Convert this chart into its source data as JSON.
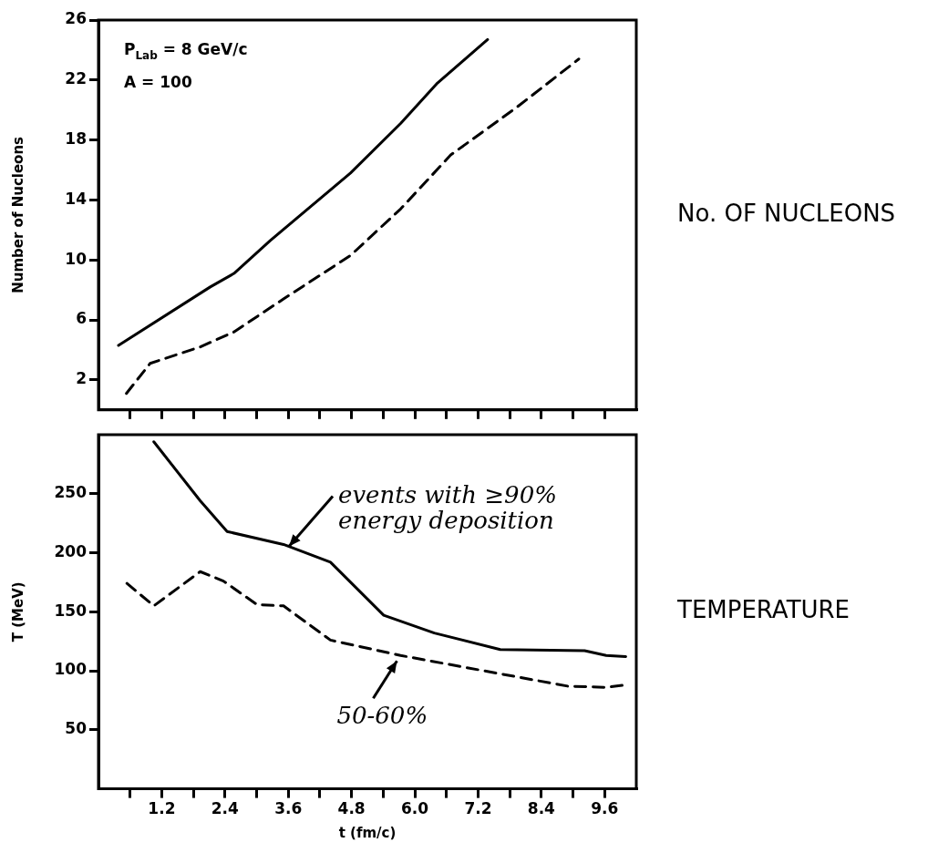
{
  "chart_data": [
    {
      "type": "line",
      "y2label": "No. OF NUCLEONS",
      "ylabel": "Number of Nucleons",
      "xlim": [
        0,
        10.2
      ],
      "xticks": [
        {
          "value": 0.6,
          "label": null
        },
        {
          "value": 1.2,
          "label": null
        },
        {
          "value": 1.8,
          "label": null
        },
        {
          "value": 2.4,
          "label": null
        },
        {
          "value": 3.0,
          "label": null
        },
        {
          "value": 3.6,
          "label": null
        },
        {
          "value": 4.2,
          "label": null
        },
        {
          "value": 4.8,
          "label": null
        },
        {
          "value": 5.4,
          "label": null
        },
        {
          "value": 6.0,
          "label": null
        },
        {
          "value": 6.6,
          "label": null
        },
        {
          "value": 7.2,
          "label": null
        },
        {
          "value": 7.8,
          "label": null
        },
        {
          "value": 8.4,
          "label": null
        },
        {
          "value": 9.0,
          "label": null
        },
        {
          "value": 9.6,
          "label": null
        }
      ],
      "ylim": [
        0,
        26
      ],
      "yticks": [
        2,
        6,
        10,
        14,
        18,
        22,
        26
      ],
      "tick_labels": "y",
      "legend": false,
      "annotations": [
        "P$_{Lab}$ = 8 GeV/c",
        "A = 100"
      ],
      "series": [
        {
          "color": "#000000",
          "line_style": "solid",
          "x": [
            0.38,
            2.12,
            2.57,
            3.26,
            4.78,
            5.73,
            6.43,
            7.38
          ],
          "values": [
            4.3,
            8.2,
            9.1,
            11.3,
            15.8,
            19.1,
            21.8,
            24.7
          ]
        },
        {
          "color": "#000000",
          "line_style": "dashed",
          "x": [
            0.53,
            0.98,
            1.93,
            2.57,
            3.51,
            4.78,
            5.73,
            6.68,
            7.94,
            9.11
          ],
          "values": [
            1.1,
            3.1,
            4.2,
            5.2,
            7.4,
            10.3,
            13.4,
            17.0,
            20.2,
            23.4
          ]
        }
      ]
    },
    {
      "type": "line",
      "y2label": "TEMPERATURE",
      "xlabel": "t (fm/c)",
      "ylabel": "T (MeV)",
      "xlim": [
        0,
        10.2
      ],
      "xticks": [
        {
          "value": 0.6,
          "label": null
        },
        1.2,
        {
          "value": 1.8,
          "label": null
        },
        2.4,
        {
          "value": 3.0,
          "label": null
        },
        3.6,
        {
          "value": 4.2,
          "label": null
        },
        4.8,
        {
          "value": 5.4,
          "label": null
        },
        {
          "value": 6,
          "label": "6.0"
        },
        {
          "value": 6.6,
          "label": null
        },
        7.2,
        {
          "value": 7.8,
          "label": null
        },
        8.4,
        {
          "value": 9.0,
          "label": null
        },
        9.6
      ],
      "ylim": [
        0,
        300
      ],
      "yticks": [
        50,
        100,
        150,
        200,
        250
      ],
      "legend": false,
      "annotations": [
        {
          "text": "events with ≥90% energy deposition",
          "x": 3.51,
          "y": 207
        },
        {
          "text": "50-60%",
          "x": 5.73,
          "y": 113
        }
      ],
      "series": [
        {
          "color": "#000000",
          "line_style": "solid",
          "x": [
            1.05,
            1.93,
            2.44,
            3.51,
            4.4,
            5.41,
            6.37,
            7.62,
            9.22,
            9.63,
            10.0
          ],
          "values": [
            294,
            244,
            218,
            207,
            192,
            147,
            132,
            118,
            117,
            113,
            112
          ]
        },
        {
          "color": "#000000",
          "line_style": "dashed",
          "x": [
            0.54,
            1.05,
            1.93,
            2.37,
            3.01,
            3.51,
            4.4,
            5.73,
            7.31,
            8.9,
            9.63,
            10.0
          ],
          "values": [
            174,
            155,
            184,
            176,
            156,
            155,
            126,
            113,
            100,
            87,
            86,
            88
          ]
        }
      ]
    }
  ]
}
